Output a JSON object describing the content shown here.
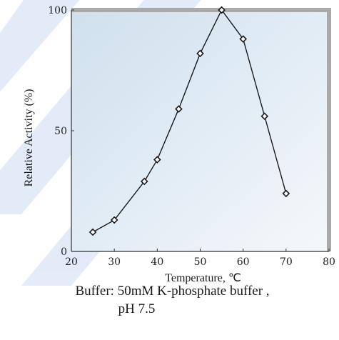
{
  "chart_data": {
    "type": "line",
    "xlabel": "Temperature, ℃",
    "ylabel": "Relative Activity (%)",
    "xlim": [
      20,
      80
    ],
    "ylim": [
      0,
      100
    ],
    "x_ticks": [
      "20",
      "30",
      "40",
      "50",
      "60",
      "70",
      "80"
    ],
    "y_ticks": [
      "0",
      "50",
      "100"
    ],
    "grid": false,
    "series": [
      {
        "x": [
          25,
          30,
          37,
          40,
          45,
          50,
          55,
          60,
          65,
          70
        ],
        "values": [
          8,
          13,
          29,
          38,
          59,
          82,
          100,
          88,
          56,
          24
        ],
        "color": "#1a1a1a"
      }
    ]
  },
  "caption": {
    "line1": "Buffer: 50mM K-phosphate buffer ,",
    "line2": "pH 7.5"
  },
  "colors": {
    "plot_background_start": "#cfe0ee",
    "plot_background_end": "#f4f8fb",
    "frame": "#a9a9a9",
    "watermark": "#2f6fd8"
  }
}
